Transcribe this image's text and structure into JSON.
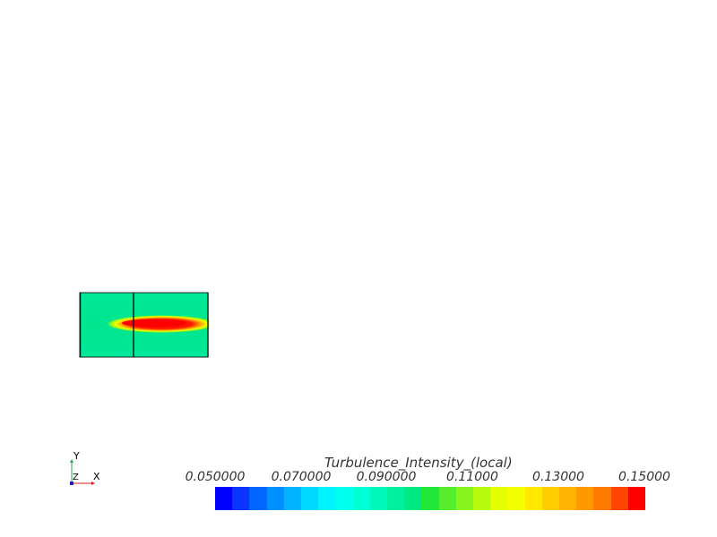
{
  "scalar_bar": {
    "title": "Turbulence_Intensity_(local)",
    "tick_labels": [
      "0.050000",
      "0.070000",
      "0.090000",
      "0.11000",
      "0.13000",
      "0.15000"
    ],
    "range": [
      0.05,
      0.15
    ],
    "colors": [
      "#0000ff",
      "#0b34ff",
      "#0066ff",
      "#0090ff",
      "#00b4ff",
      "#00d8ff",
      "#00f4ff",
      "#00ffee",
      "#00ffd4",
      "#00f9bb",
      "#00f0a0",
      "#00e882",
      "#22e83c",
      "#55ee2d",
      "#88f41e",
      "#b8fa0f",
      "#e4ff00",
      "#f4ff00",
      "#ffe900",
      "#ffcc00",
      "#ffb200",
      "#ff9900",
      "#ff7a00",
      "#ff4400",
      "#ff0000"
    ]
  },
  "axes": {
    "y": "Y",
    "z": "Z",
    "x": "X"
  },
  "field": {
    "background_color": "#00e999",
    "hot_color": "#ff0000"
  }
}
